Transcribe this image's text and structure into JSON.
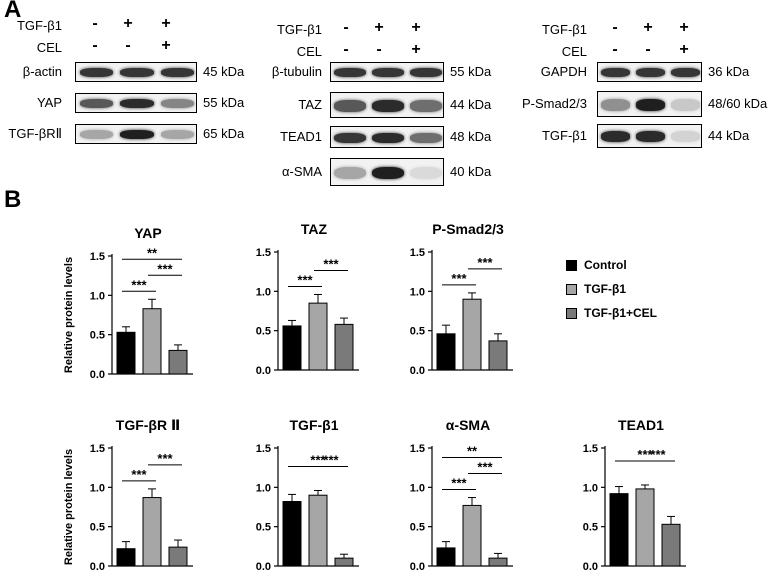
{
  "panel_a": {
    "letter": "A",
    "groups": [
      {
        "tgf_label": "TGF-β1",
        "cel_label": "CEL",
        "tgf_signs": [
          "-",
          "+",
          "+"
        ],
        "cel_signs": [
          "-",
          "-",
          "+"
        ],
        "blots": [
          {
            "protein": "β-actin",
            "kda": "45 kDa",
            "intensity": [
              0.85,
              0.85,
              0.85
            ]
          },
          {
            "protein": "YAP",
            "kda": "55 kDa",
            "intensity": [
              0.7,
              0.9,
              0.5
            ]
          },
          {
            "protein": "TGF-βRⅡ",
            "kda": "65 kDa",
            "intensity": [
              0.35,
              0.95,
              0.35
            ]
          }
        ]
      },
      {
        "tgf_label": "TGF-β1",
        "cel_label": "CEL",
        "tgf_signs": [
          "-",
          "+",
          "+"
        ],
        "cel_signs": [
          "-",
          "-",
          "+"
        ],
        "blots": [
          {
            "protein": "β-tubulin",
            "kda": "55 kDa",
            "intensity": [
              0.85,
              0.85,
              0.85
            ]
          },
          {
            "protein": "TAZ",
            "kda": "44 kDa",
            "intensity": [
              0.7,
              0.9,
              0.6
            ]
          },
          {
            "protein": "TEAD1",
            "kda": "48 kDa",
            "intensity": [
              0.85,
              0.9,
              0.6
            ]
          },
          {
            "protein": "α-SMA",
            "kda": "40 kDa",
            "intensity": [
              0.35,
              0.95,
              0.12
            ]
          }
        ]
      },
      {
        "tgf_label": "TGF-β1",
        "cel_label": "CEL",
        "tgf_signs": [
          "-",
          "+",
          "+"
        ],
        "cel_signs": [
          "-",
          "-",
          "+"
        ],
        "blots": [
          {
            "protein": "GAPDH",
            "kda": "36 kDa",
            "intensity": [
              0.85,
              0.85,
              0.85
            ]
          },
          {
            "protein": "P-Smad2/3",
            "kda": "48/60 kDa",
            "intensity": [
              0.45,
              0.95,
              0.2
            ]
          },
          {
            "protein": "TGF-β1",
            "kda": "44 kDa",
            "intensity": [
              0.9,
              0.9,
              0.15
            ]
          }
        ]
      }
    ]
  },
  "panel_b": {
    "letter": "B"
  },
  "legend": {
    "items": [
      {
        "label": "Control",
        "color": "#000000"
      },
      {
        "label": "TGF-β1",
        "color": "#a6a6a6"
      },
      {
        "label": "TGF-β1+CEL",
        "color": "#7a7a7a"
      }
    ]
  },
  "chart_data": [
    {
      "type": "bar",
      "title": "YAP",
      "ylabel": "Relative protein levels",
      "ylim": [
        0,
        1.5
      ],
      "yticks": [
        "0.0",
        "0.5",
        "1.0",
        "1.5"
      ],
      "categories": [
        "Control",
        "TGF-β1",
        "TGF-β1+CEL"
      ],
      "values": [
        0.53,
        0.83,
        0.3
      ],
      "errors": [
        0.07,
        0.12,
        0.07
      ],
      "annotations": [
        {
          "from": 0,
          "to": 1,
          "label": "***"
        },
        {
          "from": 1,
          "to": 2,
          "label": "***"
        },
        {
          "from": 0,
          "to": 2,
          "label": "**"
        }
      ]
    },
    {
      "type": "bar",
      "title": "TAZ",
      "ylabel": "",
      "ylim": [
        0,
        1.5
      ],
      "yticks": [
        "0.0",
        "0.5",
        "1.0",
        "1.5"
      ],
      "categories": [
        "Control",
        "TGF-β1",
        "TGF-β1+CEL"
      ],
      "values": [
        0.56,
        0.85,
        0.58
      ],
      "errors": [
        0.07,
        0.11,
        0.08
      ],
      "annotations": [
        {
          "from": 0,
          "to": 1,
          "label": "***"
        },
        {
          "from": 1,
          "to": 2,
          "label": "***"
        }
      ]
    },
    {
      "type": "bar",
      "title": "P-Smad2/3",
      "ylabel": "",
      "ylim": [
        0,
        1.5
      ],
      "yticks": [
        "0.0",
        "0.5",
        "1.0",
        "1.5"
      ],
      "categories": [
        "Control",
        "TGF-β1",
        "TGF-β1+CEL"
      ],
      "values": [
        0.46,
        0.9,
        0.37
      ],
      "errors": [
        0.11,
        0.08,
        0.09
      ],
      "annotations": [
        {
          "from": 0,
          "to": 1,
          "label": "***"
        },
        {
          "from": 1,
          "to": 2,
          "label": "***"
        }
      ]
    },
    {
      "type": "bar",
      "title": "TGF-βR Ⅱ",
      "ylabel": "Relative protein levels",
      "ylim": [
        0,
        1.5
      ],
      "yticks": [
        "0.0",
        "0.5",
        "1.0",
        "1.5"
      ],
      "categories": [
        "Control",
        "TGF-β1",
        "TGF-β1+CEL"
      ],
      "values": [
        0.22,
        0.87,
        0.24
      ],
      "errors": [
        0.09,
        0.11,
        0.09
      ],
      "annotations": [
        {
          "from": 0,
          "to": 1,
          "label": "***"
        },
        {
          "from": 1,
          "to": 2,
          "label": "***"
        }
      ]
    },
    {
      "type": "bar",
      "title": "TGF-β1",
      "ylabel": "",
      "ylim": [
        0,
        1.5
      ],
      "yticks": [
        "0.0",
        "0.5",
        "1.0",
        "1.5"
      ],
      "categories": [
        "Control",
        "TGF-β1",
        "TGF-β1+CEL"
      ],
      "values": [
        0.82,
        0.9,
        0.1
      ],
      "errors": [
        0.09,
        0.06,
        0.05
      ],
      "annotations": [
        {
          "from": 0,
          "to": 2,
          "label": "***"
        },
        {
          "from": 1,
          "to": 2,
          "label": "***"
        }
      ]
    },
    {
      "type": "bar",
      "title": "α-SMA",
      "ylabel": "",
      "ylim": [
        0,
        1.5
      ],
      "yticks": [
        "0.0",
        "0.5",
        "1.0",
        "1.5"
      ],
      "categories": [
        "Control",
        "TGF-β1",
        "TGF-β1+CEL"
      ],
      "values": [
        0.23,
        0.77,
        0.1
      ],
      "errors": [
        0.08,
        0.1,
        0.06
      ],
      "annotations": [
        {
          "from": 0,
          "to": 1,
          "label": "***"
        },
        {
          "from": 1,
          "to": 2,
          "label": "***"
        },
        {
          "from": 0,
          "to": 2,
          "label": "**"
        }
      ]
    },
    {
      "type": "bar",
      "title": "TEAD1",
      "ylabel": "",
      "ylim": [
        0,
        1.5
      ],
      "yticks": [
        "0.0",
        "0.5",
        "1.0",
        "1.5"
      ],
      "categories": [
        "Control",
        "TGF-β1",
        "TGF-β1+CEL"
      ],
      "values": [
        0.92,
        0.98,
        0.53
      ],
      "errors": [
        0.09,
        0.05,
        0.1
      ],
      "annotations": [
        {
          "from": 0,
          "to": 2,
          "label": "***"
        },
        {
          "from": 1,
          "to": 2,
          "label": "***"
        }
      ]
    }
  ]
}
